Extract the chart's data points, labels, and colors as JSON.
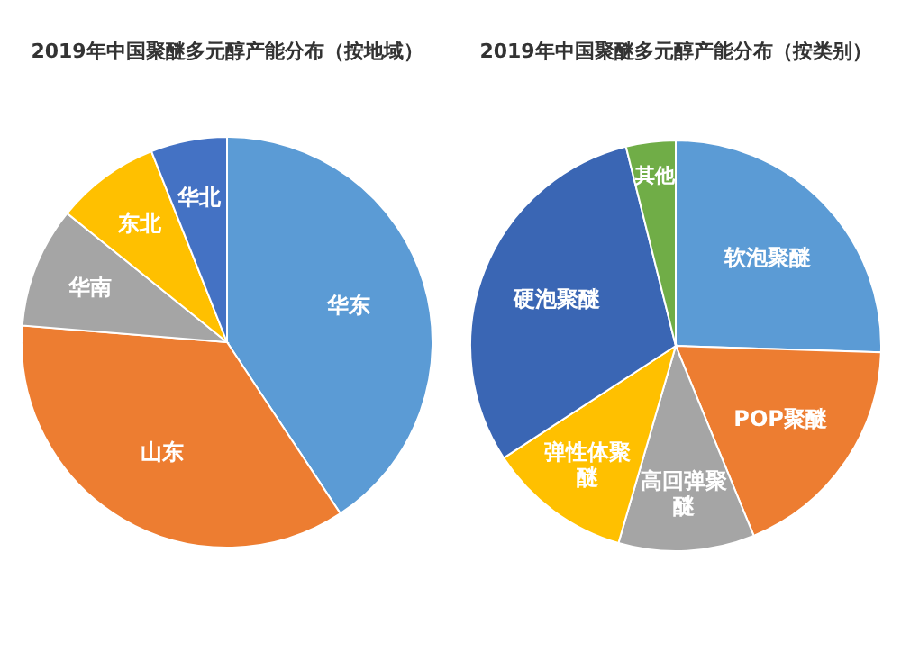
{
  "chart_data": [
    {
      "type": "pie",
      "title": "2019年中国聚醚多元醇产能分布（按地域）",
      "categories": [
        "华东",
        "山东",
        "华南",
        "东北",
        "华北"
      ],
      "values": [
        40.7,
        35.6,
        9.5,
        8.2,
        6.0
      ],
      "colors": [
        "#5b9bd5",
        "#ed7d31",
        "#a5a5a5",
        "#ffc000",
        "#4472c4"
      ]
    },
    {
      "type": "pie",
      "title": "2019年中国聚醚多元醇产能分布（按类别）",
      "categories": [
        "软泡聚醚",
        "POP聚醚",
        "高回弹聚醚",
        "弹性体聚醚",
        "硬泡聚醚",
        "其他"
      ],
      "values": [
        25.5,
        18.3,
        10.7,
        11.3,
        30.3,
        3.9
      ],
      "colors": [
        "#5b9bd5",
        "#ed7d31",
        "#a5a5a5",
        "#ffc000",
        "#3a66b4",
        "#70ad47"
      ]
    }
  ]
}
